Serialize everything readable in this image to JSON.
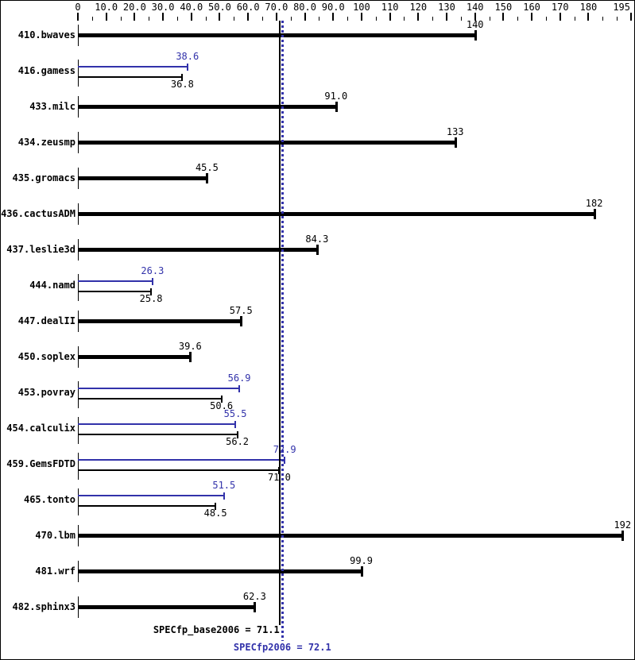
{
  "chart_data": {
    "type": "bar",
    "orientation": "horizontal",
    "grid": false,
    "legend": "none",
    "colors": {
      "base_bar": "#000000",
      "peak_bar": "#3232aa",
      "background": "#ffffff"
    },
    "x_axis": {
      "min": 0,
      "max": 195,
      "position": "top",
      "major_ticks": [
        0,
        10,
        20,
        30,
        40,
        50,
        60,
        70,
        80,
        90,
        100,
        110,
        120,
        130,
        140,
        150,
        160,
        170,
        180,
        195
      ],
      "major_tick_labels": [
        "0",
        "10.0",
        "20.0",
        "30.0",
        "40.0",
        "50.0",
        "60.0",
        "70.0",
        "80.0",
        "90.0",
        "100",
        "110",
        "120",
        "130",
        "140",
        "150",
        "160",
        "170",
        "180",
        "195"
      ],
      "minor_ticks": [
        5,
        15,
        25,
        35,
        45,
        55,
        65,
        75,
        85,
        95,
        105,
        115,
        125,
        135,
        145,
        155,
        165,
        175,
        185,
        190
      ]
    },
    "benchmarks": [
      {
        "name": "410.bwaves",
        "base": 140,
        "base_label": "140"
      },
      {
        "name": "416.gamess",
        "base": 36.8,
        "base_label": "36.8",
        "peak": 38.6,
        "peak_label": "38.6"
      },
      {
        "name": "433.milc",
        "base": 91.0,
        "base_label": "91.0"
      },
      {
        "name": "434.zeusmp",
        "base": 133,
        "base_label": "133"
      },
      {
        "name": "435.gromacs",
        "base": 45.5,
        "base_label": "45.5"
      },
      {
        "name": "436.cactusADM",
        "base": 182,
        "base_label": "182"
      },
      {
        "name": "437.leslie3d",
        "base": 84.3,
        "base_label": "84.3"
      },
      {
        "name": "444.namd",
        "base": 25.8,
        "base_label": "25.8",
        "peak": 26.3,
        "peak_label": "26.3"
      },
      {
        "name": "447.dealII",
        "base": 57.5,
        "base_label": "57.5"
      },
      {
        "name": "450.soplex",
        "base": 39.6,
        "base_label": "39.6"
      },
      {
        "name": "453.povray",
        "base": 50.6,
        "base_label": "50.6",
        "peak": 56.9,
        "peak_label": "56.9"
      },
      {
        "name": "454.calculix",
        "base": 56.2,
        "base_label": "56.2",
        "peak": 55.5,
        "peak_label": "55.5"
      },
      {
        "name": "459.GemsFDTD",
        "base": 71.0,
        "base_label": "71.0",
        "peak": 72.9,
        "peak_label": "72.9"
      },
      {
        "name": "465.tonto",
        "base": 48.5,
        "base_label": "48.5",
        "peak": 51.5,
        "peak_label": "51.5"
      },
      {
        "name": "470.lbm",
        "base": 192,
        "base_label": "192"
      },
      {
        "name": "481.wrf",
        "base": 99.9,
        "base_label": "99.9"
      },
      {
        "name": "482.sphinx3",
        "base": 62.3,
        "base_label": "62.3"
      }
    ],
    "base_mean": {
      "label": "SPECfp_base2006 = 71.1",
      "value": 71.1
    },
    "peak_mean": {
      "label": "SPECfp2006 = 72.1",
      "value": 72.1
    }
  }
}
